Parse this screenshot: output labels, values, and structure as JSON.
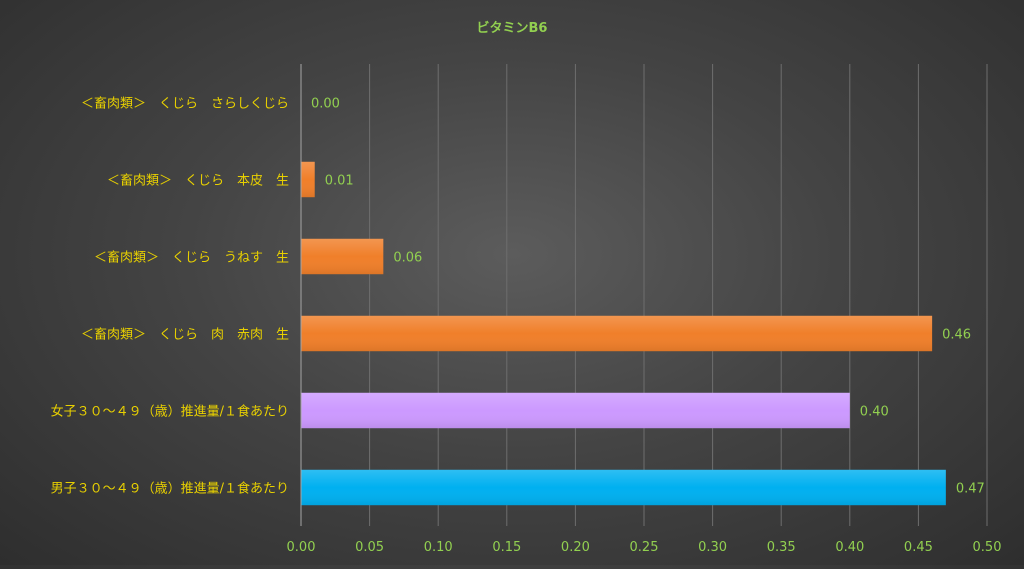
{
  "chart_data": {
    "type": "bar",
    "orientation": "horizontal",
    "title": "ビタミンB6",
    "categories": [
      "＜畜肉類＞　くじら　さらしくじら",
      "＜畜肉類＞　くじら　本皮　生",
      "＜畜肉類＞　くじら　うねす　生",
      "＜畜肉類＞　くじら　肉　赤肉　生",
      "女子３０～４９（歳）推進量/１食あたり",
      "男子３０～４９（歳）推進量/１食あたり"
    ],
    "values": [
      0.0,
      0.01,
      0.06,
      0.46,
      0.4,
      0.47
    ],
    "data_labels": [
      "0.00",
      "0.01",
      "0.06",
      "0.46",
      "0.40",
      "0.47"
    ],
    "bar_colors": [
      "#F07F2A",
      "#F07F2A",
      "#F07F2A",
      "#F07F2A",
      "#CC99FF",
      "#00B0F0"
    ],
    "xlim": [
      0,
      0.5
    ],
    "x_ticks": [
      0.0,
      0.05,
      0.1,
      0.15,
      0.2,
      0.25,
      0.3,
      0.35,
      0.4,
      0.45,
      0.5
    ],
    "x_tick_labels": [
      "0.00",
      "0.05",
      "0.10",
      "0.15",
      "0.20",
      "0.25",
      "0.30",
      "0.35",
      "0.40",
      "0.45",
      "0.50"
    ],
    "grid": "vertical",
    "legend": "none",
    "xlabel": "",
    "ylabel": ""
  },
  "colors": {
    "title": "#92D050",
    "category_label": "#E8D000",
    "tick_label": "#92D050",
    "data_label": "#92D050",
    "gridline": "#6E6E6E",
    "axis": "#A6A6A6"
  }
}
